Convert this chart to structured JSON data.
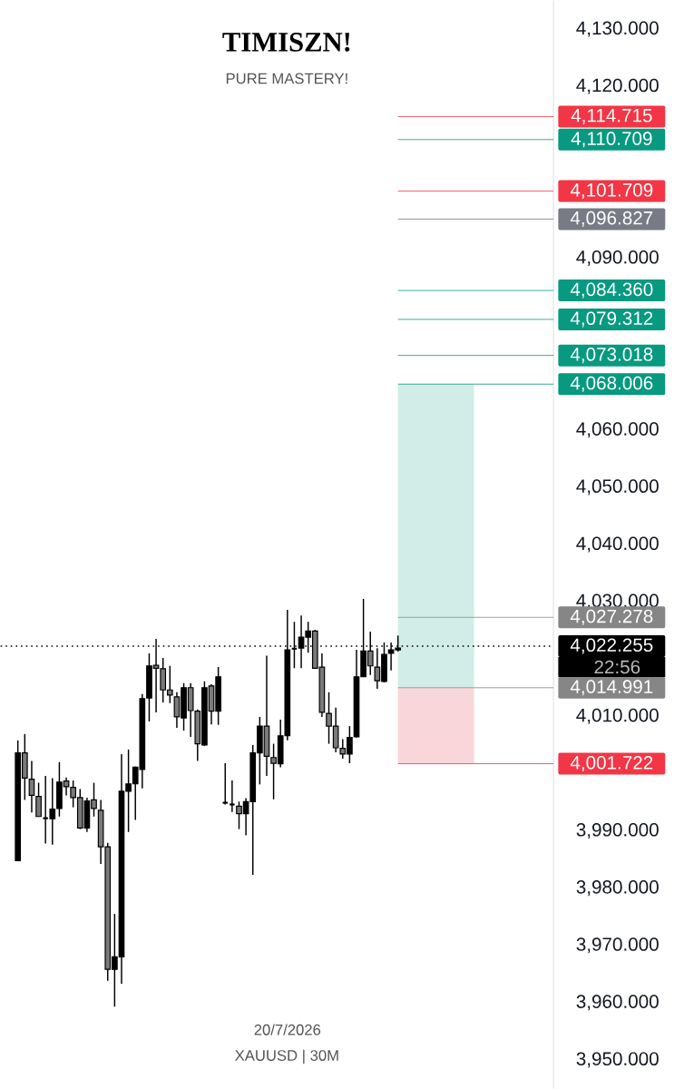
{
  "chart_data": {
    "type": "candlestick",
    "title": "TIMISZN!",
    "subtitle": "PURE MASTERY!",
    "xlabel": "XAUUSD | 30M",
    "categories": [
      null,
      null,
      null,
      null,
      null,
      null,
      null,
      null,
      null,
      null,
      null,
      null,
      null,
      null,
      null,
      null,
      null,
      null,
      null,
      null,
      null,
      null,
      null,
      null,
      null,
      null,
      null,
      null,
      null,
      null,
      null,
      null,
      null,
      null,
      null,
      null,
      null,
      null,
      null,
      null,
      null,
      "20/7/2026",
      null,
      null,
      null,
      null,
      null,
      null,
      null,
      null,
      null,
      null,
      null,
      null,
      null,
      null,
      null,
      null,
      null,
      null,
      null,
      null,
      null,
      null,
      null,
      null,
      null,
      null,
      null,
      null,
      null,
      null,
      null,
      null,
      null,
      null,
      null,
      null,
      null,
      null
    ],
    "ohlc": [
      null,
      null,
      [
        3984.8,
        4005.8,
        3984.8,
        4003.6
      ],
      [
        4003.6,
        4006.9,
        3995.4,
        3999.2
      ],
      [
        3999.0,
        4002.2,
        3993.2,
        3996.2
      ],
      [
        3996.0,
        3998.4,
        3992.5,
        3992.5
      ],
      [
        3992.2,
        3999.6,
        3987.8,
        3992.2
      ],
      [
        3992.1,
        3999.2,
        3987.6,
        3993.8
      ],
      [
        3993.9,
        4002.0,
        3992.5,
        3998.5
      ],
      [
        3998.7,
        3999.3,
        3996.2,
        3997.7
      ],
      [
        3997.6,
        3998.8,
        3994.1,
        3995.8
      ],
      [
        3995.8,
        3997.3,
        3990.3,
        3990.5
      ],
      [
        3990.5,
        3995.8,
        3989.8,
        3995.2
      ],
      [
        3995.4,
        3998.4,
        3992.5,
        3993.9
      ],
      [
        3993.6,
        3995.4,
        3984.2,
        3987.2
      ],
      [
        3987.2,
        3987.9,
        3963.8,
        3965.8
      ],
      [
        3965.8,
        3975.5,
        3959.3,
        3968.0
      ],
      [
        3968.0,
        4003.4,
        3963.3,
        3996.9
      ],
      [
        3996.9,
        4004.2,
        3989.8,
        3998.2
      ],
      [
        3998.2,
        4001.2,
        3991.9,
        4001.1
      ],
      [
        4000.7,
        4013.9,
        3997.4,
        4013.1
      ],
      [
        4013.2,
        4021.0,
        4009.1,
        4018.8
      ],
      [
        4018.9,
        4023.5,
        4010.7,
        4018.4
      ],
      [
        4018.3,
        4020.2,
        4012.4,
        4014.6
      ],
      [
        4014.6,
        4018.8,
        4012.3,
        4013.7
      ],
      [
        4013.4,
        4014.2,
        4008.0,
        4009.9
      ],
      [
        4009.7,
        4015.8,
        4007.5,
        4015.0
      ],
      [
        4015.0,
        4015.8,
        4006.4,
        4011.0
      ],
      [
        4010.9,
        4011.2,
        4002.2,
        4005.2
      ],
      [
        4005.0,
        4016.1,
        4004.8,
        4015.0
      ],
      [
        4015.3,
        4015.6,
        4008.6,
        4010.9
      ],
      [
        4010.9,
        4018.6,
        4008.5,
        4016.9
      ],
      [
        3994.9,
        4001.8,
        3994.6,
        3994.9
      ],
      [
        3994.6,
        3998.8,
        3993.3,
        3994.6
      ],
      [
        3994.3,
        3995.1,
        3990.3,
        3993.0
      ],
      [
        3993.0,
        3995.7,
        3989.2,
        3995.1
      ],
      [
        3995.1,
        4005.0,
        3982.3,
        4003.6
      ],
      [
        4003.6,
        4009.9,
        3998.1,
        4008.3
      ],
      [
        4008.3,
        4020.6,
        3999.6,
        4003.0
      ],
      [
        4002.8,
        4005.2,
        3995.5,
        4001.8
      ],
      [
        4001.7,
        4009.4,
        4001.1,
        4006.6
      ],
      [
        4006.6,
        4028.6,
        4005.8,
        4021.6
      ],
      [
        4021.8,
        4026.5,
        4018.4,
        4021.8
      ],
      [
        4021.9,
        4027.6,
        4018.4,
        4023.8
      ],
      [
        4023.8,
        4026.5,
        4021.1,
        4024.9
      ],
      [
        4024.9,
        4025.1,
        4018.3,
        4018.4
      ],
      [
        4018.6,
        4021.0,
        4009.9,
        4010.7
      ],
      [
        4010.5,
        4014.2,
        4005.2,
        4008.3
      ],
      [
        4008.3,
        4011.5,
        4003.7,
        4004.5
      ],
      [
        4004.4,
        4006.0,
        4002.6,
        4003.4
      ],
      [
        4003.4,
        4008.3,
        4001.8,
        4006.3
      ],
      [
        4006.4,
        4021.6,
        4006.3,
        4016.9
      ],
      [
        4016.9,
        4030.5,
        4016.9,
        4021.4
      ],
      [
        4021.4,
        4024.8,
        4017.2,
        4018.8
      ],
      [
        4018.6,
        4021.9,
        4014.8,
        4016.2
      ],
      [
        4016.1,
        4022.9,
        4015.9,
        4020.8
      ],
      [
        4021.0,
        4022.9,
        4018.0,
        4021.6
      ],
      [
        4021.6,
        4024.1,
        4021.3,
        4021.9
      ],
      null,
      null,
      null,
      null,
      null,
      null,
      null,
      null,
      null,
      null,
      null,
      null,
      null,
      null,
      null,
      null,
      null,
      null,
      null,
      null,
      null,
      null
    ],
    "ylim": [
      3945,
      4135
    ],
    "yticks": [
      {
        "value": 4130,
        "label": "4,130.000"
      },
      {
        "value": 4120,
        "label": "4,120.000"
      },
      {
        "value": 4090,
        "label": "4,090.000"
      },
      {
        "value": 4060,
        "label": "4,060.000"
      },
      {
        "value": 4050,
        "label": "4,050.000"
      },
      {
        "value": 4040,
        "label": "4,040.000"
      },
      {
        "value": 4030,
        "label": "4,030.000"
      },
      {
        "value": 4010,
        "label": "4,010.000"
      },
      {
        "value": 3990,
        "label": "3,990.000"
      },
      {
        "value": 3980,
        "label": "3,980.000"
      },
      {
        "value": 3970,
        "label": "3,970.000"
      },
      {
        "value": 3960,
        "label": "3,960.000"
      },
      {
        "value": 3950,
        "label": "3,950.000"
      }
    ],
    "bands": [
      {
        "axis": "y",
        "from": 4014.991,
        "to": 4068.006,
        "color": "#d2ede7"
      },
      {
        "axis": "y",
        "from": 4001.722,
        "to": 4014.991,
        "color": "#f9d6da"
      }
    ],
    "ref_lines": [
      {
        "axis": "y",
        "value": 4114.715,
        "label": "4,114.715",
        "color": "#f23645"
      },
      {
        "axis": "y",
        "value": 4110.709,
        "label": "4,110.709",
        "color": "#089981"
      },
      {
        "axis": "y",
        "value": 4101.709,
        "label": "4,101.709",
        "color": "#f23645"
      },
      {
        "axis": "y",
        "value": 4096.827,
        "label": "4,096.827",
        "color": "#787b86"
      },
      {
        "axis": "y",
        "value": 4084.36,
        "label": "4,084.360",
        "color": "#089981"
      },
      {
        "axis": "y",
        "value": 4079.312,
        "label": "4,079.312",
        "color": "#089981"
      },
      {
        "axis": "y",
        "value": 4073.018,
        "label": "4,073.018",
        "color": "#089981"
      },
      {
        "axis": "y",
        "value": 4068.006,
        "label": "4,068.006",
        "color": "#089981"
      },
      {
        "axis": "y",
        "value": 4027.278,
        "label": "4,027.278",
        "color": "#868686"
      },
      {
        "axis": "y",
        "value": 4022.255,
        "label": "4,022.255",
        "color": "#000000",
        "line_style": "dotted"
      },
      {
        "axis": "y",
        "value": 4014.991,
        "label": "4,014.991",
        "color": "#868686"
      },
      {
        "axis": "y",
        "value": 4001.722,
        "label": "4,001.722",
        "color": "#f23645"
      }
    ],
    "annotations": [
      "22:56"
    ]
  }
}
